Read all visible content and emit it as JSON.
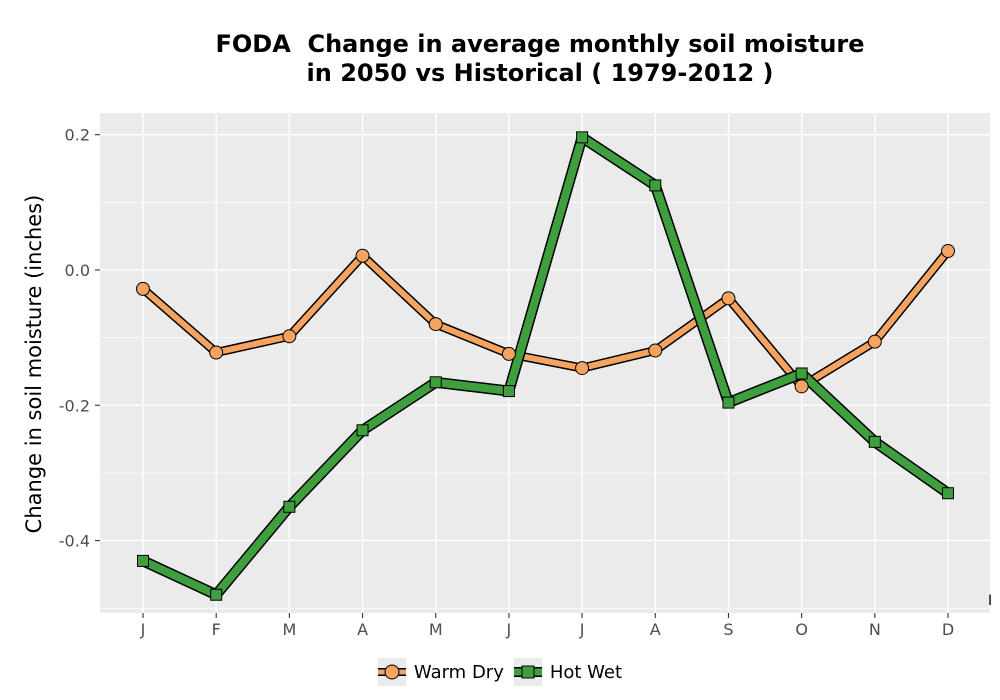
{
  "chart_data": {
    "type": "line",
    "title_lines": [
      "FODA  Change in average monthly soil moisture",
      "in 2050 vs Historical ( 1979-2012 )"
    ],
    "xlabel": "",
    "ylabel": "Change in soil moisture (inches)",
    "categories": [
      "J",
      "F",
      "M",
      "A",
      "M",
      "J",
      "J",
      "A",
      "S",
      "O",
      "N",
      "D"
    ],
    "yticks": [
      0.2,
      0.0,
      -0.2,
      -0.4
    ],
    "ytick_labels": [
      "0.2",
      "0.0",
      "-0.2",
      "-0.4"
    ],
    "ylim": [
      -0.507,
      0.232
    ],
    "grid": true,
    "legend_position": "bottom",
    "series": [
      {
        "name": "Warm Dry",
        "color": "#F4A460",
        "marker": "circle",
        "values": [
          -0.028,
          -0.122,
          -0.098,
          0.021,
          -0.08,
          -0.124,
          -0.145,
          -0.119,
          -0.042,
          -0.172,
          -0.106,
          0.028
        ]
      },
      {
        "name": "Hot Wet",
        "color": "#3F9F3F",
        "marker": "square",
        "values": [
          -0.43,
          -0.48,
          -0.35,
          -0.237,
          -0.166,
          -0.179,
          0.196,
          0.125,
          -0.196,
          -0.153,
          -0.254,
          -0.33
        ]
      }
    ]
  },
  "stray_mark": "I"
}
